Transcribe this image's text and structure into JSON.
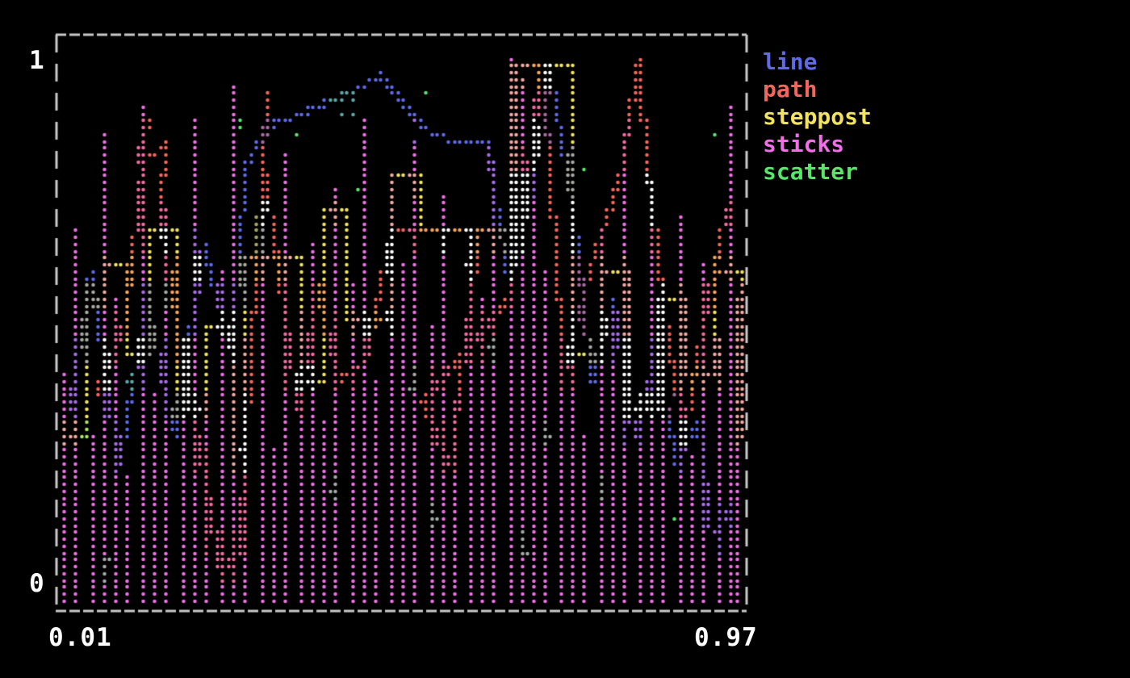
{
  "background_color": "#000000",
  "axes": {
    "y_top_label": "1",
    "y_bottom_label": "0",
    "x_left_label": "0.01",
    "x_right_label": "0.97",
    "label_color": "#FFFFFF",
    "border_color": "#C9C9C9",
    "border_style": "dashed"
  },
  "legend": {
    "position": "outside-right",
    "items": [
      {
        "label": "line",
        "color": "#5F6BE6"
      },
      {
        "label": "path",
        "color": "#F4665C"
      },
      {
        "label": "steppost",
        "color": "#F2E35C"
      },
      {
        "label": "sticks",
        "color": "#F06FE8"
      },
      {
        "label": "scatter",
        "color": "#57E56A"
      }
    ]
  },
  "chart_data": {
    "type": "mixed",
    "renderer": "terminal-braille-dots",
    "xlim": [
      0.01,
      0.97
    ],
    "ylim": [
      0,
      1
    ],
    "grid": false,
    "overlap_color": "#FFFFFF",
    "series": [
      {
        "name": "line",
        "style": "line",
        "color": "#5F6BE6",
        "x": [
          0.02,
          0.05,
          0.09,
          0.13,
          0.17,
          0.21,
          0.25,
          0.27,
          0.3,
          0.33,
          0.36,
          0.39,
          0.42,
          0.46,
          0.5,
          0.53,
          0.56,
          0.61,
          0.64,
          0.67,
          0.7,
          0.73,
          0.76,
          0.79,
          0.82,
          0.85,
          0.88,
          0.91,
          0.93,
          0.96
        ],
        "y": [
          0.35,
          0.6,
          0.25,
          0.55,
          0.3,
          0.65,
          0.45,
          0.8,
          0.87,
          0.885,
          0.9,
          0.92,
          0.935,
          0.965,
          0.9,
          0.86,
          0.845,
          0.84,
          0.6,
          0.72,
          0.97,
          0.75,
          0.4,
          0.55,
          0.3,
          0.45,
          0.25,
          0.33,
          0.12,
          0.18
        ]
      },
      {
        "name": "path",
        "style": "path",
        "color": "#F4665C",
        "x": [
          0.06,
          0.1,
          0.13,
          0.115,
          0.16,
          0.145,
          0.235,
          0.26,
          0.3,
          0.295,
          0.345,
          0.37,
          0.4,
          0.44,
          0.475,
          0.6,
          0.56,
          0.52,
          0.64,
          0.665,
          0.69,
          0.72,
          0.755,
          0.8,
          0.825,
          0.84,
          0.865,
          0.89,
          0.92,
          0.95
        ],
        "y": [
          0.38,
          0.52,
          0.88,
          0.8,
          0.84,
          0.72,
          0.05,
          0.09,
          0.93,
          0.8,
          0.35,
          0.58,
          0.4,
          0.44,
          0.675,
          0.68,
          0.25,
          0.36,
          0.55,
          0.72,
          0.985,
          0.42,
          0.6,
          0.78,
          0.99,
          0.78,
          0.5,
          0.3,
          0.52,
          0.72
        ]
      },
      {
        "name": "steppost",
        "style": "steppost",
        "color": "#F2E35C",
        "x": [
          0.01,
          0.045,
          0.07,
          0.1,
          0.135,
          0.17,
          0.21,
          0.25,
          0.27,
          0.345,
          0.38,
          0.41,
          0.445,
          0.48,
          0.515,
          0.63,
          0.655,
          0.7,
          0.73,
          0.77,
          0.81,
          0.85,
          0.89,
          0.93,
          0.97
        ],
        "y": [
          0.3,
          0.55,
          0.62,
          0.45,
          0.68,
          0.35,
          0.5,
          0.28,
          0.63,
          0.4,
          0.72,
          0.52,
          0.52,
          0.78,
          0.675,
          0.675,
          0.985,
          0.985,
          0.45,
          0.6,
          0.35,
          0.55,
          0.42,
          0.6,
          0.3
        ]
      },
      {
        "name": "sticks",
        "style": "sticks",
        "color": "#F06FE8",
        "x": [
          0.012,
          0.0305,
          0.049,
          0.0675,
          0.086,
          0.1045,
          0.123,
          0.1415,
          0.16,
          0.1785,
          0.197,
          0.2155,
          0.234,
          0.2525,
          0.271,
          0.2895,
          0.308,
          0.3265,
          0.345,
          0.3635,
          0.382,
          0.4005,
          0.419,
          0.4375,
          0.456,
          0.4745,
          0.493,
          0.5115,
          0.53,
          0.5485,
          0.567,
          0.5855,
          0.604,
          0.6225,
          0.641,
          0.6595,
          0.678,
          0.6965,
          0.715,
          0.7335,
          0.752,
          0.7705,
          0.789,
          0.8075,
          0.826,
          0.8445,
          0.863,
          0.8815,
          0.9,
          0.9185,
          0.937,
          0.9555,
          0.962,
          0.968
        ],
        "y": [
          0.42,
          0.68,
          0.3,
          0.85,
          0.55,
          0.22,
          0.9,
          0.38,
          0.72,
          0.48,
          0.88,
          0.35,
          0.6,
          0.95,
          0.45,
          0.7,
          0.28,
          0.82,
          0.52,
          0.65,
          0.33,
          0.76,
          0.58,
          0.88,
          0.4,
          0.78,
          0.62,
          0.84,
          0.5,
          0.74,
          0.36,
          0.68,
          0.55,
          0.8,
          0.99,
          0.96,
          0.92,
          0.6,
          0.44,
          0.72,
          0.3,
          0.66,
          0.52,
          0.86,
          0.38,
          0.75,
          0.58,
          0.7,
          0.26,
          0.62,
          0.48,
          0.9,
          0.55,
          0.35
        ]
      },
      {
        "name": "scatter",
        "style": "scatter",
        "color": "#57E56A",
        "x": [
          0.264,
          0.258,
          0.338,
          0.432,
          0.752,
          0.504,
          0.283,
          0.283,
          0.289,
          0.289,
          0.655,
          0.655,
          0.845,
          0.845,
          0.073,
          0.1,
          0.045,
          0.93,
          0.7,
          0.465,
          0.58,
          0.615,
          0.155,
          0.2,
          0.385,
          0.54,
          0.665,
          0.77,
          0.875,
          0.385,
          0.395,
          0.405,
          0.42,
          0.42,
          0.527
        ],
        "y": [
          0.888,
          0.873,
          0.858,
          0.754,
          0.796,
          0.384,
          0.7,
          0.675,
          0.7,
          0.675,
          0.76,
          0.735,
          0.73,
          0.75,
          0.075,
          0.4,
          0.305,
          0.86,
          0.3,
          0.525,
          0.61,
          0.47,
          0.545,
          0.625,
          0.2,
          0.145,
          0.09,
          0.22,
          0.145,
          0.915,
          0.915,
          0.895,
          0.915,
          0.895,
          0.93
        ]
      }
    ]
  }
}
